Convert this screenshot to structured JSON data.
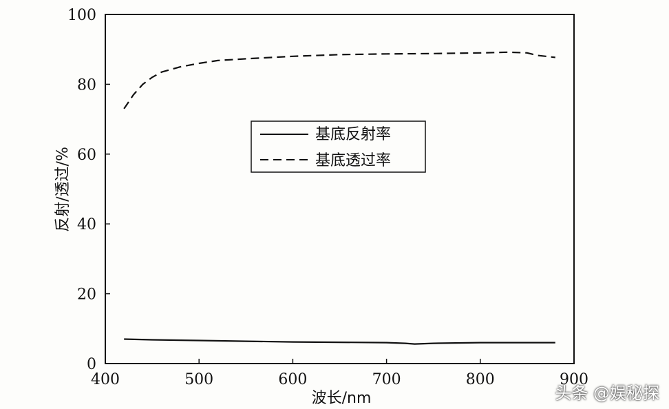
{
  "chart_data": {
    "type": "line",
    "xlabel": "波长/nm",
    "ylabel": "反射/透过/%",
    "xlim": [
      400,
      900
    ],
    "ylim": [
      0,
      100
    ],
    "xticks": [
      "400",
      "500",
      "600",
      "700",
      "800",
      "900"
    ],
    "yticks": [
      "0",
      "20",
      "40",
      "60",
      "80",
      "100"
    ],
    "grid": false,
    "legend_position": "center",
    "series": [
      {
        "name": "基底反射率",
        "style": "solid",
        "x": [
          420,
          450,
          500,
          550,
          600,
          650,
          700,
          720,
          730,
          750,
          800,
          850,
          880
        ],
        "y": [
          7.0,
          6.8,
          6.6,
          6.4,
          6.2,
          6.1,
          6.0,
          5.8,
          5.6,
          5.8,
          6.0,
          6.0,
          6.0
        ]
      },
      {
        "name": "基底透过率",
        "style": "dashed",
        "x": [
          420,
          430,
          440,
          450,
          460,
          480,
          500,
          520,
          550,
          600,
          650,
          700,
          750,
          800,
          830,
          850,
          860,
          870,
          880
        ],
        "y": [
          73,
          77,
          80,
          82,
          83.5,
          85,
          86,
          86.8,
          87.3,
          88,
          88.5,
          88.7,
          88.8,
          89,
          89.2,
          89,
          88.3,
          88,
          87.7
        ]
      }
    ]
  },
  "watermark": "头条 @娱秘探"
}
